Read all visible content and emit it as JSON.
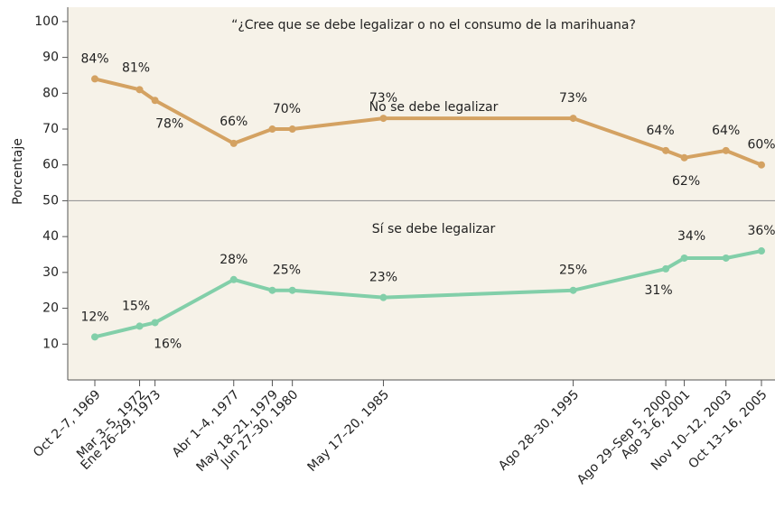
{
  "chart_data": {
    "type": "line",
    "title": "“¿Cree que se debe legalizar o no el consumo de la marihuana?",
    "y_label": "Porcentaje",
    "categories": [
      "Oct 2–7, 1969",
      "Mar 3–5, 1972",
      "Ene 26–29, 1973",
      "Abr 1–4, 1977",
      "May 18–21, 1979",
      "Jun 27–30, 1980",
      "May 17–20, 1985",
      "Ago 28–30, 1995",
      "Ago 29–Sep 5, 2000",
      "Ago 3–6, 2001",
      "Nov 10–12, 2003",
      "Oct 13–16, 2005"
    ],
    "series": [
      {
        "name": "No se debe legalizar",
        "color": "#d4a262",
        "values": [
          84,
          81,
          78,
          66,
          70,
          70,
          73,
          73,
          64,
          62,
          64,
          60
        ],
        "value_labels": [
          "84%",
          "81%",
          "78%",
          "66%",
          "70%",
          null,
          "73%",
          "73%",
          "64%",
          "62%",
          "64%",
          "60%"
        ]
      },
      {
        "name": "Sí se debe legalizar",
        "color": "#82cfa9",
        "values": [
          12,
          15,
          16,
          28,
          25,
          25,
          23,
          25,
          31,
          34,
          34,
          36
        ],
        "value_labels": [
          "12%",
          "15%",
          "16%",
          "28%",
          "25%",
          null,
          "23%",
          "25%",
          "31%",
          "34%",
          null,
          "36%"
        ]
      }
    ],
    "ylim": [
      0,
      104
    ],
    "yticks": [
      10,
      20,
      30,
      40,
      50,
      60,
      70,
      80,
      90,
      100
    ],
    "reference_line": 50
  }
}
